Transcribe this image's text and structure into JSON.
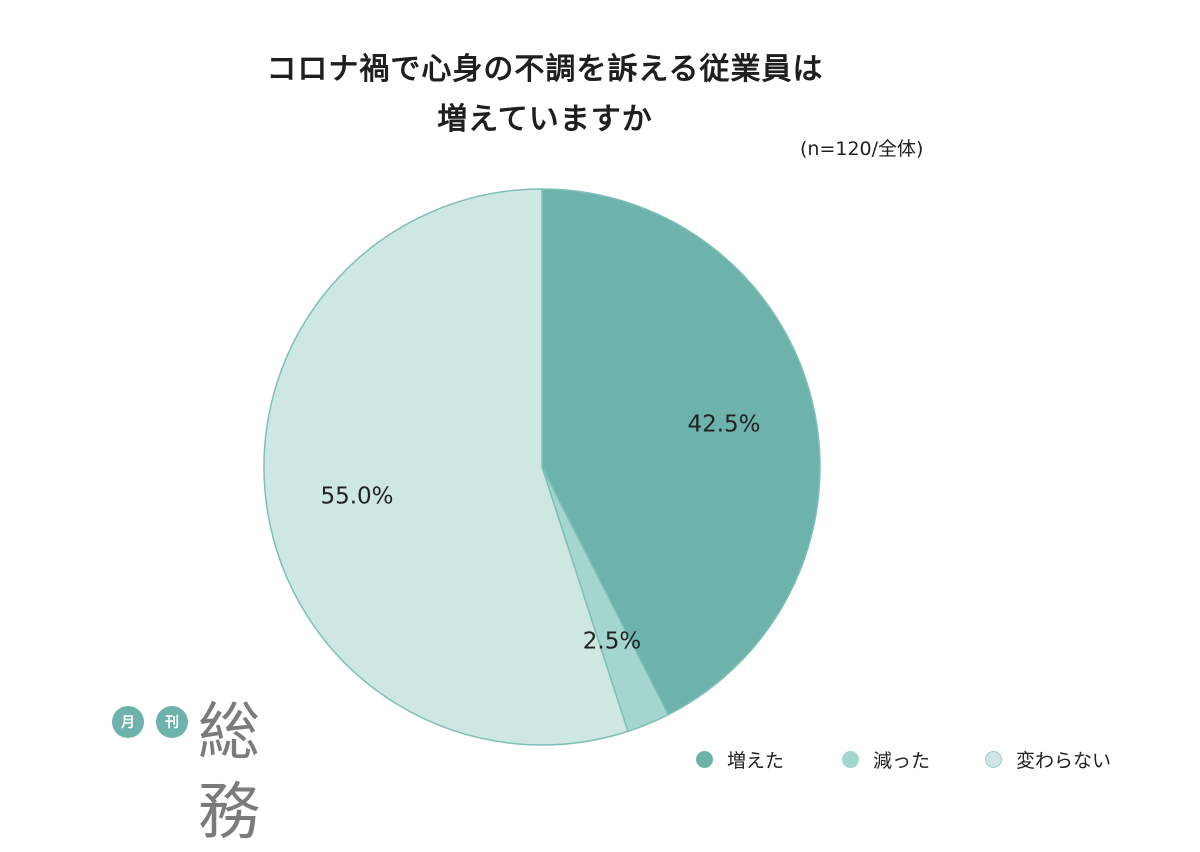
{
  "chart_data": {
    "type": "pie",
    "title": "コロナ禍で心身の不調を訴える従業員は\n増えていますか",
    "title_lines": [
      "コロナ禍で心身の不調を訴える従業員は",
      "増えていますか"
    ],
    "note": "(n=120/全体)",
    "slices": [
      {
        "label": "増えた",
        "value": 42.5,
        "value_label": "42.5%",
        "color": "#6db3ab"
      },
      {
        "label": "減った",
        "value": 2.5,
        "value_label": "2.5%",
        "color": "#a4d6cf"
      },
      {
        "label": "変わらない",
        "value": 55.0,
        "value_label": "55.0%",
        "color": "#cfe7e3"
      }
    ],
    "start": "12 o'clock",
    "direction": "clockwise",
    "legend_position": "bottom-right"
  },
  "logo": {
    "badge_1": "月",
    "badge_2": "刊",
    "text": "総務"
  },
  "colors": {
    "outline": "#7fbfb7",
    "text": "#222222"
  }
}
